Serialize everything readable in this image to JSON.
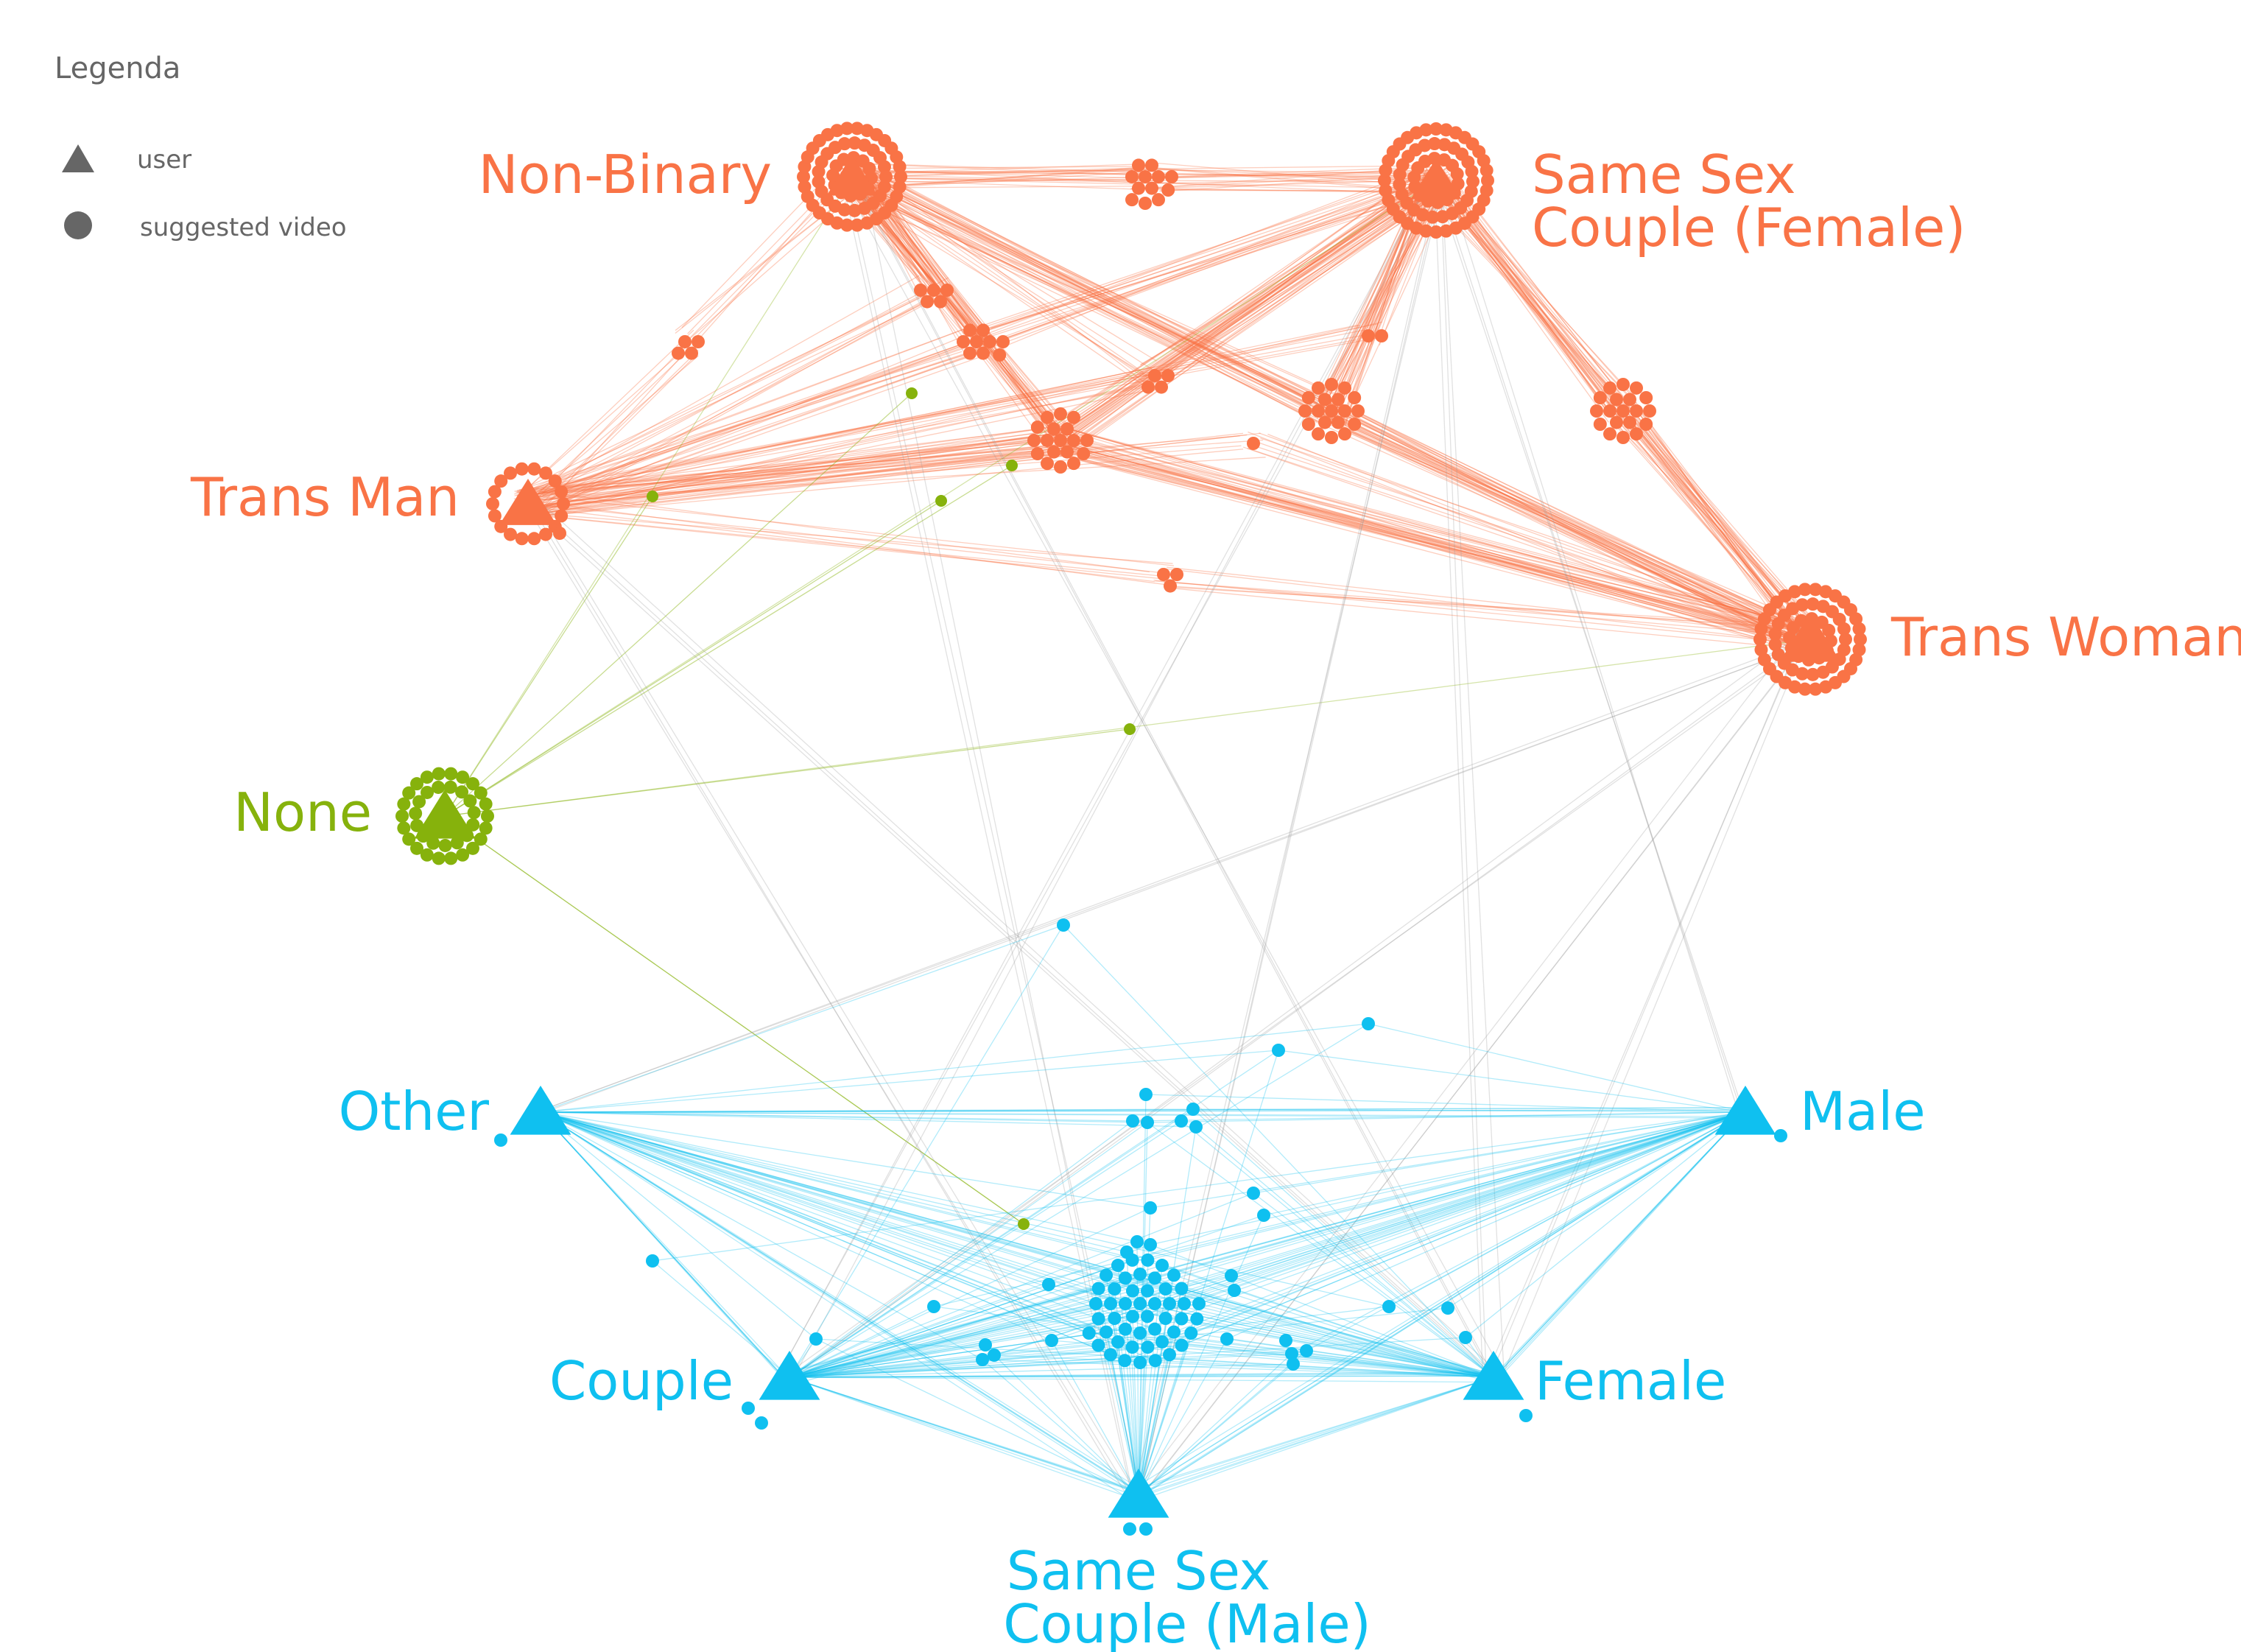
{
  "legend": {
    "title": "Legenda",
    "items": [
      {
        "shape": "triangle",
        "label": "user"
      },
      {
        "shape": "circle",
        "label": "suggested video"
      }
    ]
  },
  "colors": {
    "orange": "#f97346",
    "green": "#86b20c",
    "blue": "#0fc0f0",
    "gray": "#9a9a9a",
    "legend": "#666666"
  },
  "users": [
    {
      "id": "non-binary",
      "lines": [
        "Non-Binary"
      ],
      "color": "orange"
    },
    {
      "id": "same-sex-couple-female",
      "lines": [
        "Same Sex",
        "Couple (Female)"
      ],
      "color": "orange"
    },
    {
      "id": "trans-man",
      "lines": [
        "Trans Man"
      ],
      "color": "orange"
    },
    {
      "id": "trans-woman",
      "lines": [
        "Trans Woman"
      ],
      "color": "orange"
    },
    {
      "id": "none",
      "lines": [
        "None"
      ],
      "color": "green"
    },
    {
      "id": "other",
      "lines": [
        "Other"
      ],
      "color": "blue"
    },
    {
      "id": "male",
      "lines": [
        "Male"
      ],
      "color": "blue"
    },
    {
      "id": "couple",
      "lines": [
        "Couple"
      ],
      "color": "blue"
    },
    {
      "id": "female",
      "lines": [
        "Female"
      ],
      "color": "blue"
    },
    {
      "id": "same-sex-couple-male",
      "lines": [
        "Same Sex",
        "Couple (Male)"
      ],
      "color": "blue"
    }
  ]
}
